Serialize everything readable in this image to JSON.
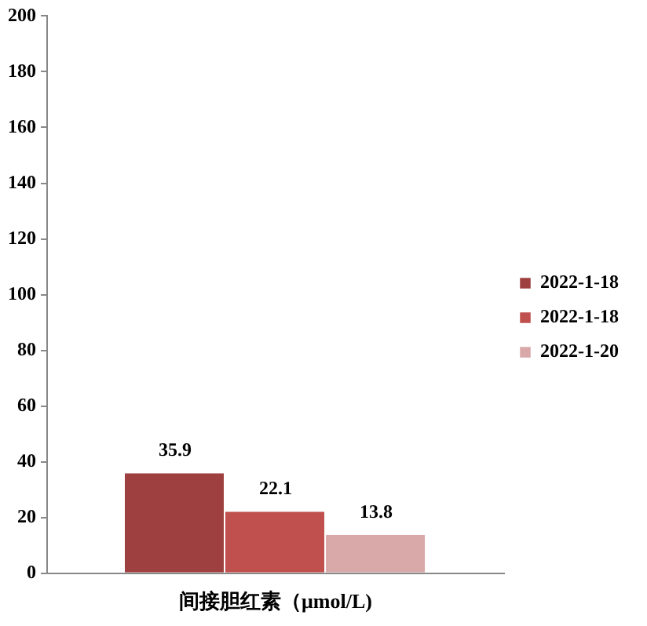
{
  "chart_data": {
    "type": "bar",
    "categories": [
      "间接胆红素（μmol/L)"
    ],
    "series": [
      {
        "name": "2022-1-18",
        "color": "#9e403f",
        "values": [
          35.9
        ]
      },
      {
        "name": "2022-1-18",
        "color": "#c0504d",
        "values": [
          22.1
        ]
      },
      {
        "name": "2022-1-20",
        "color": "#d9a9a9",
        "values": [
          13.8
        ]
      }
    ],
    "ylim": [
      0,
      200
    ],
    "yticks": [
      0,
      20,
      40,
      60,
      80,
      100,
      120,
      140,
      160,
      180,
      200
    ],
    "grid": false,
    "legend": "right",
    "data_labels": true
  }
}
